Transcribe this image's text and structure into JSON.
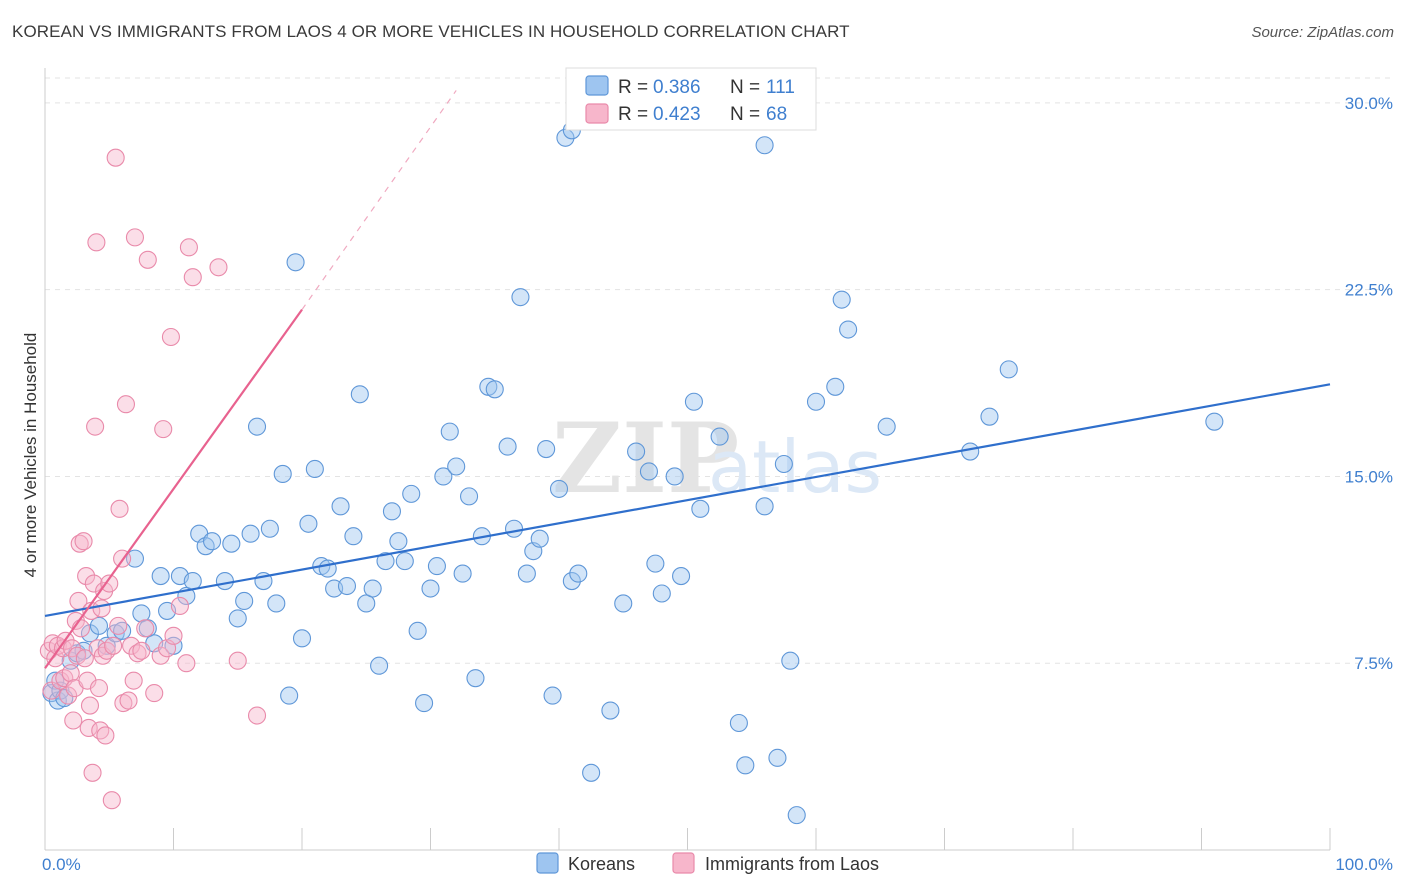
{
  "header": {
    "title": "KOREAN VS IMMIGRANTS FROM LAOS 4 OR MORE VEHICLES IN HOUSEHOLD CORRELATION CHART",
    "source": "Source: ZipAtlas.com"
  },
  "watermark": {
    "zip": "ZIP",
    "atlas": "atlas"
  },
  "legend": {
    "rows": [
      {
        "r_label": "R = ",
        "r_value": "0.386",
        "n_label": "N = ",
        "n_value": "111",
        "color": "#9ec5f0"
      },
      {
        "r_label": "R = ",
        "r_value": "0.423",
        "n_label": "N = ",
        "n_value": "68",
        "color": "#f7b6cb"
      }
    ]
  },
  "bottom_legend": [
    {
      "label": "Koreans",
      "color": "#9ec5f0"
    },
    {
      "label": "Immigrants from Laos",
      "color": "#f7b6cb"
    }
  ],
  "chart_data": {
    "type": "scatter",
    "title": "KOREAN VS IMMIGRANTS FROM LAOS 4 OR MORE VEHICLES IN HOUSEHOLD CORRELATION CHART",
    "xlabel": "",
    "ylabel": "4 or more Vehicles in Household",
    "xlim": [
      0,
      100
    ],
    "ylim": [
      0,
      31
    ],
    "x_tick_labels": [
      "0.0%",
      "100.0%"
    ],
    "y_ticks": [
      7.5,
      15.0,
      22.5,
      30.0
    ],
    "y_tick_labels": [
      "7.5%",
      "15.0%",
      "22.5%",
      "30.0%"
    ],
    "grid": true,
    "legend_position": "top-center",
    "series": [
      {
        "name": "Koreans",
        "color": "#9ec5f0",
        "stroke": "#5f97d8",
        "trend": {
          "x": [
            0,
            100
          ],
          "y": [
            9.4,
            18.7
          ],
          "color": "#2f6fcc"
        },
        "points": [
          [
            0.5,
            6.3
          ],
          [
            0.8,
            6.8
          ],
          [
            1.0,
            6.0
          ],
          [
            1.2,
            6.4
          ],
          [
            1.5,
            6.1
          ],
          [
            2.0,
            7.6
          ],
          [
            2.5,
            7.9
          ],
          [
            3.0,
            8.0
          ],
          [
            3.5,
            8.7
          ],
          [
            4.2,
            9.0
          ],
          [
            4.8,
            8.2
          ],
          [
            5.5,
            8.7
          ],
          [
            6.0,
            8.8
          ],
          [
            7.0,
            11.7
          ],
          [
            7.5,
            9.5
          ],
          [
            8.0,
            8.9
          ],
          [
            8.5,
            8.3
          ],
          [
            9.0,
            11.0
          ],
          [
            9.5,
            9.6
          ],
          [
            10.0,
            8.2
          ],
          [
            10.5,
            11.0
          ],
          [
            11.0,
            10.2
          ],
          [
            11.5,
            10.8
          ],
          [
            12.0,
            12.7
          ],
          [
            12.5,
            12.2
          ],
          [
            13.0,
            12.4
          ],
          [
            14.0,
            10.8
          ],
          [
            14.5,
            12.3
          ],
          [
            15.0,
            9.3
          ],
          [
            15.5,
            10.0
          ],
          [
            16.0,
            12.7
          ],
          [
            16.5,
            17.0
          ],
          [
            17.0,
            10.8
          ],
          [
            17.5,
            12.9
          ],
          [
            18.0,
            9.9
          ],
          [
            18.5,
            15.1
          ],
          [
            19.0,
            6.2
          ],
          [
            19.5,
            23.6
          ],
          [
            20.0,
            8.5
          ],
          [
            20.5,
            13.1
          ],
          [
            21.0,
            15.3
          ],
          [
            21.5,
            11.4
          ],
          [
            22.0,
            11.3
          ],
          [
            22.5,
            10.5
          ],
          [
            23.0,
            13.8
          ],
          [
            23.5,
            10.6
          ],
          [
            24.0,
            12.6
          ],
          [
            24.5,
            18.3
          ],
          [
            25.0,
            9.9
          ],
          [
            25.5,
            10.5
          ],
          [
            26.0,
            7.4
          ],
          [
            26.5,
            11.6
          ],
          [
            27.0,
            13.6
          ],
          [
            27.5,
            12.4
          ],
          [
            28.0,
            11.6
          ],
          [
            28.5,
            14.3
          ],
          [
            29.0,
            8.8
          ],
          [
            29.5,
            5.9
          ],
          [
            30.0,
            10.5
          ],
          [
            30.5,
            11.4
          ],
          [
            31.0,
            15.0
          ],
          [
            31.5,
            16.8
          ],
          [
            32.0,
            15.4
          ],
          [
            32.5,
            11.1
          ],
          [
            33.0,
            14.2
          ],
          [
            33.5,
            6.9
          ],
          [
            34.0,
            12.6
          ],
          [
            34.5,
            18.6
          ],
          [
            35.0,
            18.5
          ],
          [
            36.0,
            16.2
          ],
          [
            36.5,
            12.9
          ],
          [
            37.0,
            22.2
          ],
          [
            37.5,
            11.1
          ],
          [
            38.0,
            12.0
          ],
          [
            38.5,
            12.5
          ],
          [
            39.0,
            16.1
          ],
          [
            39.5,
            6.2
          ],
          [
            40.0,
            14.5
          ],
          [
            40.5,
            28.6
          ],
          [
            41.0,
            10.8
          ],
          [
            41.5,
            11.1
          ],
          [
            42.5,
            3.1
          ],
          [
            44.0,
            5.6
          ],
          [
            45.0,
            9.9
          ],
          [
            46.0,
            16.0
          ],
          [
            47.0,
            15.2
          ],
          [
            47.5,
            11.5
          ],
          [
            48.0,
            10.3
          ],
          [
            49.0,
            15.0
          ],
          [
            49.5,
            11.0
          ],
          [
            50.5,
            18.0
          ],
          [
            51.0,
            13.7
          ],
          [
            52.5,
            16.6
          ],
          [
            54.0,
            5.1
          ],
          [
            54.5,
            3.4
          ],
          [
            56.0,
            13.8
          ],
          [
            57.0,
            3.7
          ],
          [
            57.5,
            15.5
          ],
          [
            58.0,
            7.6
          ],
          [
            58.5,
            1.4
          ],
          [
            60.0,
            18.0
          ],
          [
            61.5,
            18.6
          ],
          [
            62.0,
            22.1
          ],
          [
            62.5,
            20.9
          ],
          [
            65.5,
            17.0
          ],
          [
            72.0,
            16.0
          ],
          [
            73.5,
            17.4
          ],
          [
            75.0,
            19.3
          ],
          [
            91.0,
            17.2
          ],
          [
            56.0,
            28.3
          ],
          [
            41.0,
            28.9
          ]
        ]
      },
      {
        "name": "Immigrants from Laos",
        "color": "#f7b6cb",
        "stroke": "#e98aaa",
        "trend": {
          "x": [
            0,
            20
          ],
          "y": [
            7.3,
            21.7
          ],
          "dash_to": [
            32,
            30.5
          ],
          "color": "#e8628f"
        },
        "points": [
          [
            0.3,
            8.0
          ],
          [
            0.5,
            6.4
          ],
          [
            0.6,
            8.3
          ],
          [
            0.8,
            7.7
          ],
          [
            1.0,
            8.2
          ],
          [
            1.2,
            6.8
          ],
          [
            1.4,
            8.1
          ],
          [
            1.5,
            6.9
          ],
          [
            1.6,
            8.4
          ],
          [
            1.8,
            6.2
          ],
          [
            2.0,
            7.1
          ],
          [
            2.1,
            8.1
          ],
          [
            2.2,
            5.2
          ],
          [
            2.3,
            6.5
          ],
          [
            2.4,
            9.2
          ],
          [
            2.5,
            7.8
          ],
          [
            2.6,
            10.0
          ],
          [
            2.7,
            12.3
          ],
          [
            2.8,
            8.9
          ],
          [
            3.0,
            12.4
          ],
          [
            3.1,
            7.7
          ],
          [
            3.2,
            11.0
          ],
          [
            3.3,
            6.8
          ],
          [
            3.4,
            4.9
          ],
          [
            3.5,
            5.8
          ],
          [
            3.6,
            9.6
          ],
          [
            3.7,
            3.1
          ],
          [
            3.8,
            10.7
          ],
          [
            3.9,
            17.0
          ],
          [
            4.0,
            24.4
          ],
          [
            4.1,
            8.1
          ],
          [
            4.2,
            6.5
          ],
          [
            4.3,
            4.8
          ],
          [
            4.4,
            9.7
          ],
          [
            4.5,
            7.8
          ],
          [
            4.6,
            10.4
          ],
          [
            4.7,
            4.6
          ],
          [
            4.8,
            8.0
          ],
          [
            5.0,
            10.7
          ],
          [
            5.2,
            2.0
          ],
          [
            5.3,
            8.2
          ],
          [
            5.5,
            27.8
          ],
          [
            5.7,
            9.0
          ],
          [
            5.8,
            13.7
          ],
          [
            6.0,
            11.7
          ],
          [
            6.1,
            5.9
          ],
          [
            6.3,
            17.9
          ],
          [
            6.5,
            6.0
          ],
          [
            6.7,
            8.2
          ],
          [
            6.9,
            6.8
          ],
          [
            7.0,
            24.6
          ],
          [
            7.2,
            7.9
          ],
          [
            7.5,
            8.0
          ],
          [
            7.8,
            8.9
          ],
          [
            8.0,
            23.7
          ],
          [
            8.5,
            6.3
          ],
          [
            9.0,
            7.8
          ],
          [
            9.2,
            16.9
          ],
          [
            9.5,
            8.1
          ],
          [
            9.8,
            20.6
          ],
          [
            10.0,
            8.6
          ],
          [
            10.5,
            9.8
          ],
          [
            11.0,
            7.5
          ],
          [
            11.2,
            24.2
          ],
          [
            11.5,
            23.0
          ],
          [
            13.5,
            23.4
          ],
          [
            15.0,
            7.6
          ],
          [
            16.5,
            5.4
          ]
        ]
      }
    ]
  }
}
